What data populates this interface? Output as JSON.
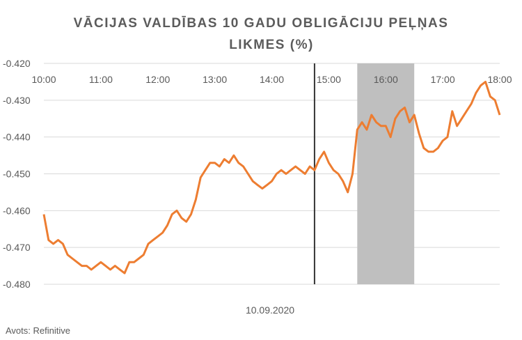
{
  "chart_data": {
    "type": "line",
    "title_line1": "VĀCIJAS VALDĪBAS 10 GADU OBLIGĀCIJU PEĻŅAS",
    "title_line2": "LIKMES (%)",
    "xlabel": "10.09.2020",
    "ylabel": "",
    "source": "Avots: Refinitive",
    "ylim": [
      -0.48,
      -0.42
    ],
    "xlim": [
      "10:00",
      "18:00"
    ],
    "y_ticks": [
      -0.42,
      -0.43,
      -0.44,
      -0.45,
      -0.46,
      -0.47,
      -0.48
    ],
    "y_tick_labels": [
      "-0.420",
      "-0.430",
      "-0.440",
      "-0.450",
      "-0.460",
      "-0.470",
      "-0.480"
    ],
    "x_tick_labels": [
      "10:00",
      "11:00",
      "12:00",
      "13:00",
      "14:00",
      "15:00",
      "16:00",
      "17:00",
      "18:00"
    ],
    "x_axis_position": "top",
    "grid": "horizontal",
    "vertical_marker": "14:45",
    "shaded_region": [
      "15:30",
      "16:30"
    ],
    "colors": {
      "line": "#ed7d31",
      "marker": "#333333",
      "shade": "#bfbfbf",
      "grid": "#d9d9d9",
      "text": "#595959"
    },
    "series": [
      {
        "x": [
          "10:00",
          "10:05",
          "10:10",
          "10:15",
          "10:20",
          "10:25",
          "10:30",
          "10:35",
          "10:40",
          "10:45",
          "10:50",
          "10:55",
          "11:00",
          "11:05",
          "11:10",
          "11:15",
          "11:20",
          "11:25",
          "11:30",
          "11:35",
          "11:40",
          "11:45",
          "11:50",
          "11:55",
          "12:00",
          "12:05",
          "12:10",
          "12:15",
          "12:20",
          "12:25",
          "12:30",
          "12:35",
          "12:40",
          "12:45",
          "12:50",
          "12:55",
          "13:00",
          "13:05",
          "13:10",
          "13:15",
          "13:20",
          "13:25",
          "13:30",
          "13:35",
          "13:40",
          "13:45",
          "13:50",
          "13:55",
          "14:00",
          "14:05",
          "14:10",
          "14:15",
          "14:20",
          "14:25",
          "14:30",
          "14:35",
          "14:40",
          "14:45",
          "14:50",
          "14:55",
          "15:00",
          "15:05",
          "15:10",
          "15:15",
          "15:20",
          "15:25",
          "15:30",
          "15:35",
          "15:40",
          "15:45",
          "15:50",
          "15:55",
          "16:00",
          "16:05",
          "16:10",
          "16:15",
          "16:20",
          "16:25",
          "16:30",
          "16:35",
          "16:40",
          "16:45",
          "16:50",
          "16:55",
          "17:00",
          "17:05",
          "17:10",
          "17:15",
          "17:20",
          "17:25",
          "17:30",
          "17:35",
          "17:40",
          "17:45",
          "17:50",
          "17:55",
          "18:00"
        ],
        "values": [
          -0.461,
          -0.468,
          -0.469,
          -0.468,
          -0.469,
          -0.472,
          -0.473,
          -0.474,
          -0.475,
          -0.475,
          -0.476,
          -0.475,
          -0.474,
          -0.475,
          -0.476,
          -0.475,
          -0.476,
          -0.477,
          -0.474,
          -0.474,
          -0.473,
          -0.472,
          -0.469,
          -0.468,
          -0.467,
          -0.466,
          -0.464,
          -0.461,
          -0.46,
          -0.462,
          -0.463,
          -0.461,
          -0.457,
          -0.451,
          -0.449,
          -0.447,
          -0.447,
          -0.448,
          -0.446,
          -0.447,
          -0.445,
          -0.447,
          -0.448,
          -0.45,
          -0.452,
          -0.453,
          -0.454,
          -0.453,
          -0.452,
          -0.45,
          -0.449,
          -0.45,
          -0.449,
          -0.448,
          -0.449,
          -0.45,
          -0.448,
          -0.449,
          -0.446,
          -0.444,
          -0.447,
          -0.449,
          -0.45,
          -0.452,
          -0.455,
          -0.45,
          -0.438,
          -0.436,
          -0.438,
          -0.434,
          -0.436,
          -0.437,
          -0.437,
          -0.44,
          -0.435,
          -0.433,
          -0.432,
          -0.436,
          -0.434,
          -0.439,
          -0.443,
          -0.444,
          -0.444,
          -0.443,
          -0.441,
          -0.44,
          -0.433,
          -0.437,
          -0.435,
          -0.433,
          -0.431,
          -0.428,
          -0.426,
          -0.425,
          -0.429,
          -0.43,
          -0.434
        ]
      }
    ]
  }
}
